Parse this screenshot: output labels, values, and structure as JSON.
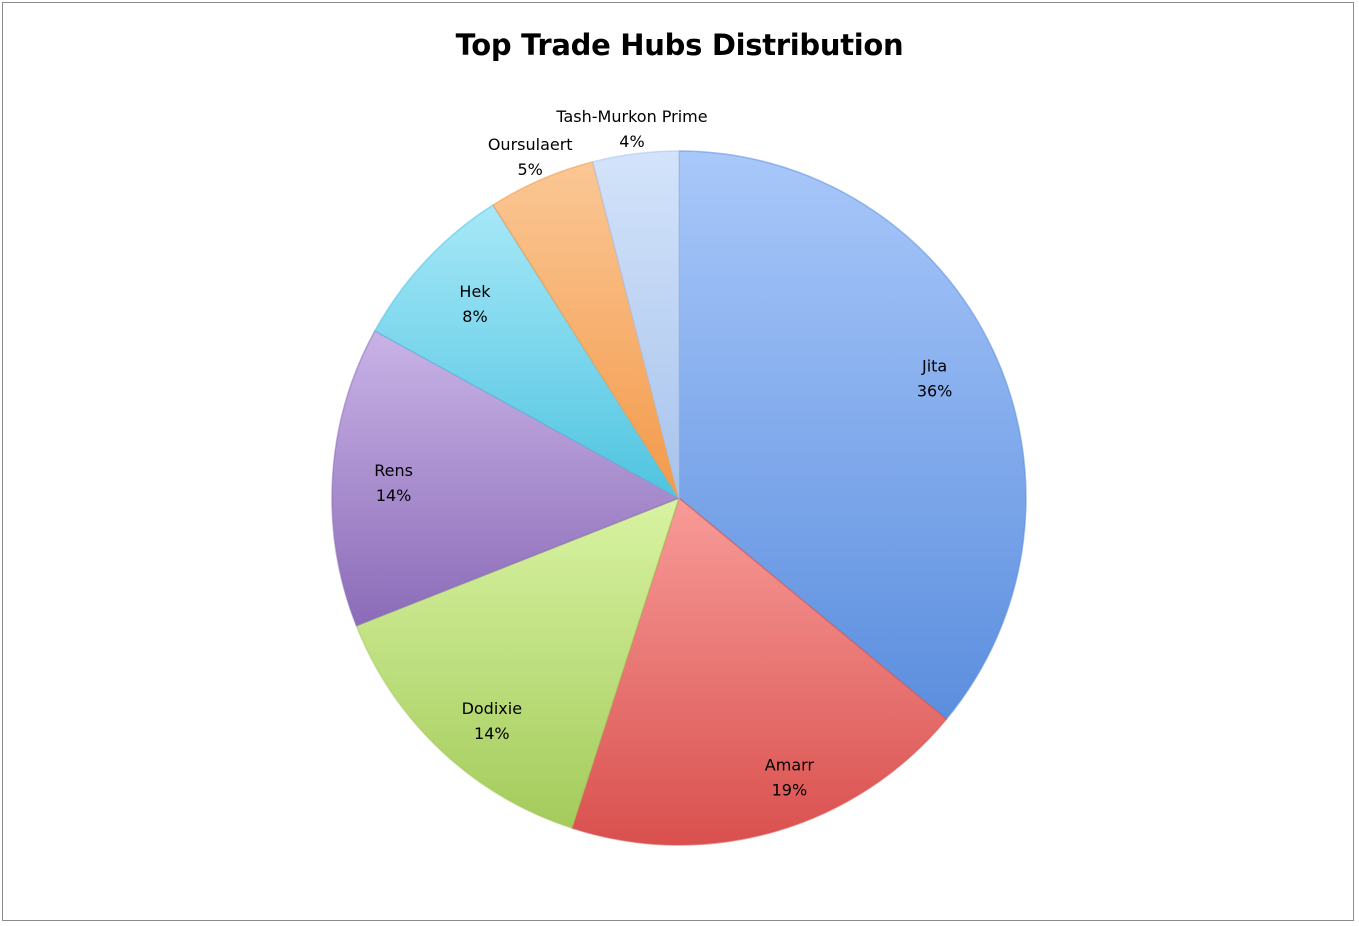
{
  "chart_data": {
    "type": "pie",
    "title": "Top Trade Hubs Distribution",
    "slices": [
      {
        "label": "Jita",
        "value": 36,
        "display": "36%",
        "color": "#5b8ede",
        "color_light": "#a9c8fa"
      },
      {
        "label": "Amarr",
        "value": 19,
        "display": "19%",
        "color": "#d9504e",
        "color_light": "#f89b98"
      },
      {
        "label": "Dodixie",
        "value": 14,
        "display": "14%",
        "color": "#a4cb5c",
        "color_light": "#d8f3a2"
      },
      {
        "label": "Rens",
        "value": 14,
        "display": "14%",
        "color": "#8b6bb8",
        "color_light": "#c9b3e6"
      },
      {
        "label": "Hek",
        "value": 8,
        "display": "8%",
        "color": "#4fc4e0",
        "color_light": "#a7e8f8"
      },
      {
        "label": "Oursulaert",
        "value": 5,
        "display": "5%",
        "color": "#f39a4a",
        "color_light": "#fbc795"
      },
      {
        "label": "Tash-Murkon Prime",
        "value": 4,
        "display": "4%",
        "color": "#a7c3ec",
        "color_light": "#d3e3fa"
      }
    ],
    "start_angle_deg": 0,
    "direction": "clockwise",
    "legend": "none",
    "data_labels": "category-and-percent"
  }
}
